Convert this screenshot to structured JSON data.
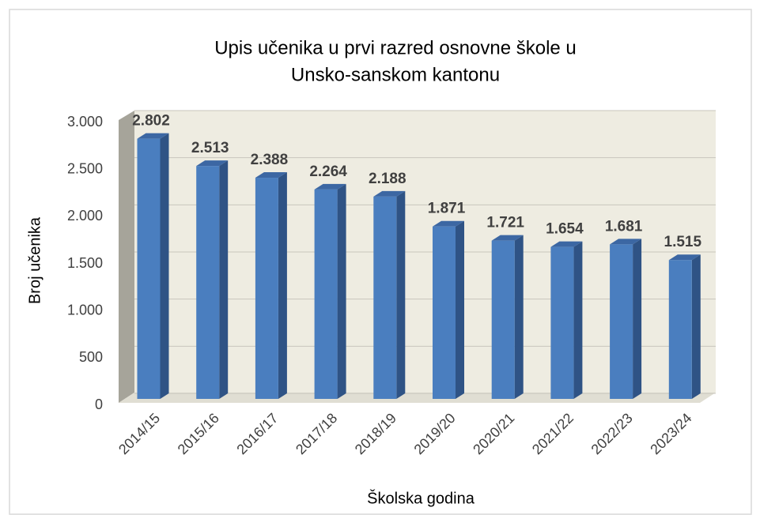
{
  "chart_data": {
    "type": "bar3d",
    "title": [
      "Upis učenika u prvi razred osnovne škole u",
      "Unsko-sanskom kantonu"
    ],
    "categories": [
      "2014/15",
      "2015/16",
      "2016/17",
      "2017/18",
      "2018/19",
      "2019/20",
      "2020/21",
      "2021/22",
      "2022/23",
      "2023/24"
    ],
    "values": [
      2802,
      2513,
      2388,
      2264,
      2188,
      1871,
      1721,
      1654,
      1681,
      1515
    ],
    "value_labels": [
      "2.802",
      "2.513",
      "2.388",
      "2.264",
      "2.188",
      "1.871",
      "1.721",
      "1.654",
      "1.681",
      "1.515"
    ],
    "color": "#4a7ebf",
    "ylim": [
      0,
      3000
    ],
    "yticks": [
      0,
      500,
      {
        "value": 1000,
        "label": "1.000"
      },
      {
        "value": 1500,
        "label": "1.500"
      },
      {
        "value": 2000,
        "label": "2.000"
      },
      {
        "value": 2500,
        "label": "2.500"
      },
      {
        "value": 3000,
        "label": "3.000"
      }
    ],
    "xlabel": "Školska godina",
    "ylabel": "Broj učenika",
    "grid": true
  }
}
